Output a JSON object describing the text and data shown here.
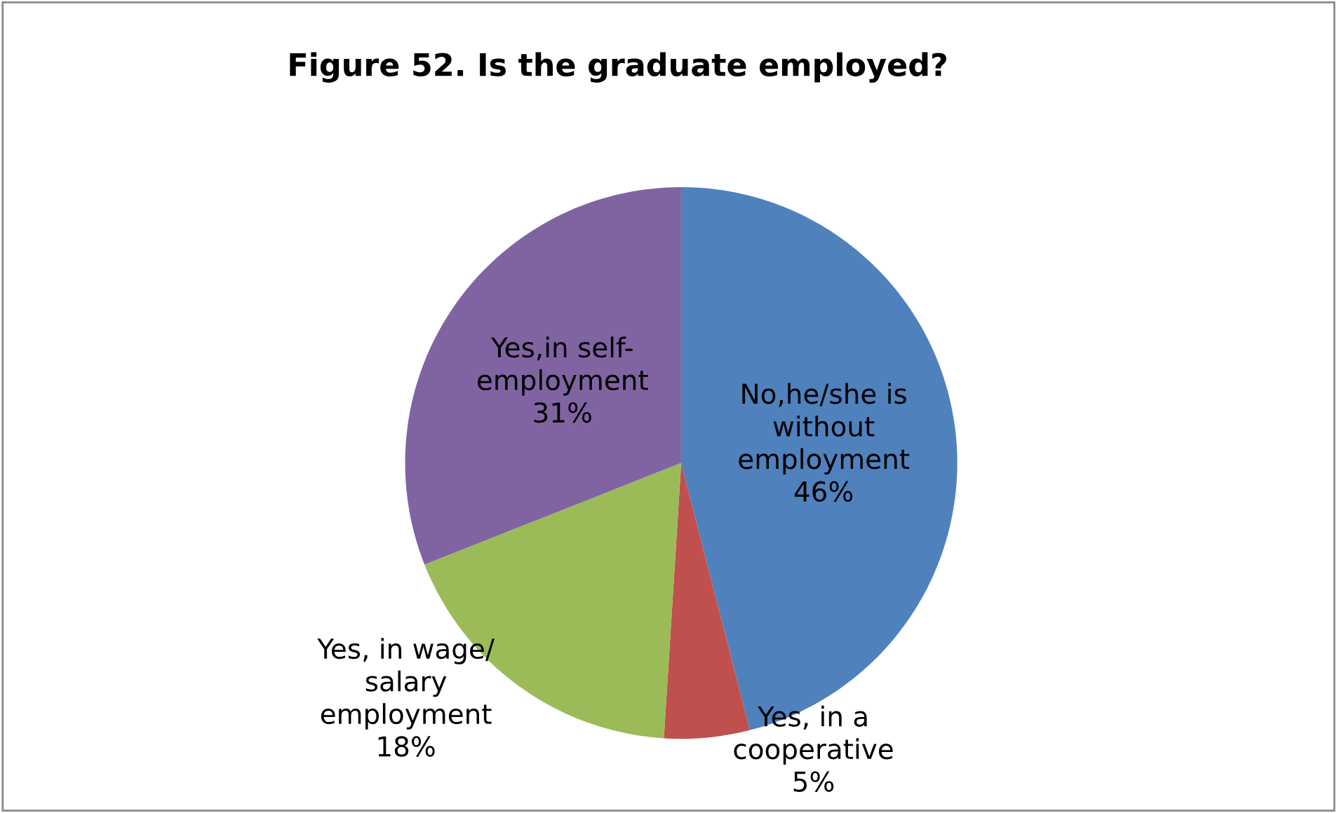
{
  "chart_data": {
    "type": "pie",
    "title": "Figure 52. Is the graduate employed?",
    "categories": [
      "No,he/she is\nwithout\nemployment",
      "Yes, in a\ncooperative",
      "Yes, in wage/\nsalary\nemployment",
      "Yes,in self-\nemployment"
    ],
    "values": [
      46,
      5,
      18,
      31
    ],
    "colors": [
      "#4f81bd",
      "#c0504d",
      "#9bbb59",
      "#8064a2"
    ],
    "value_labels": [
      "46%",
      "5%",
      "18%",
      "31%"
    ],
    "legend": false
  }
}
